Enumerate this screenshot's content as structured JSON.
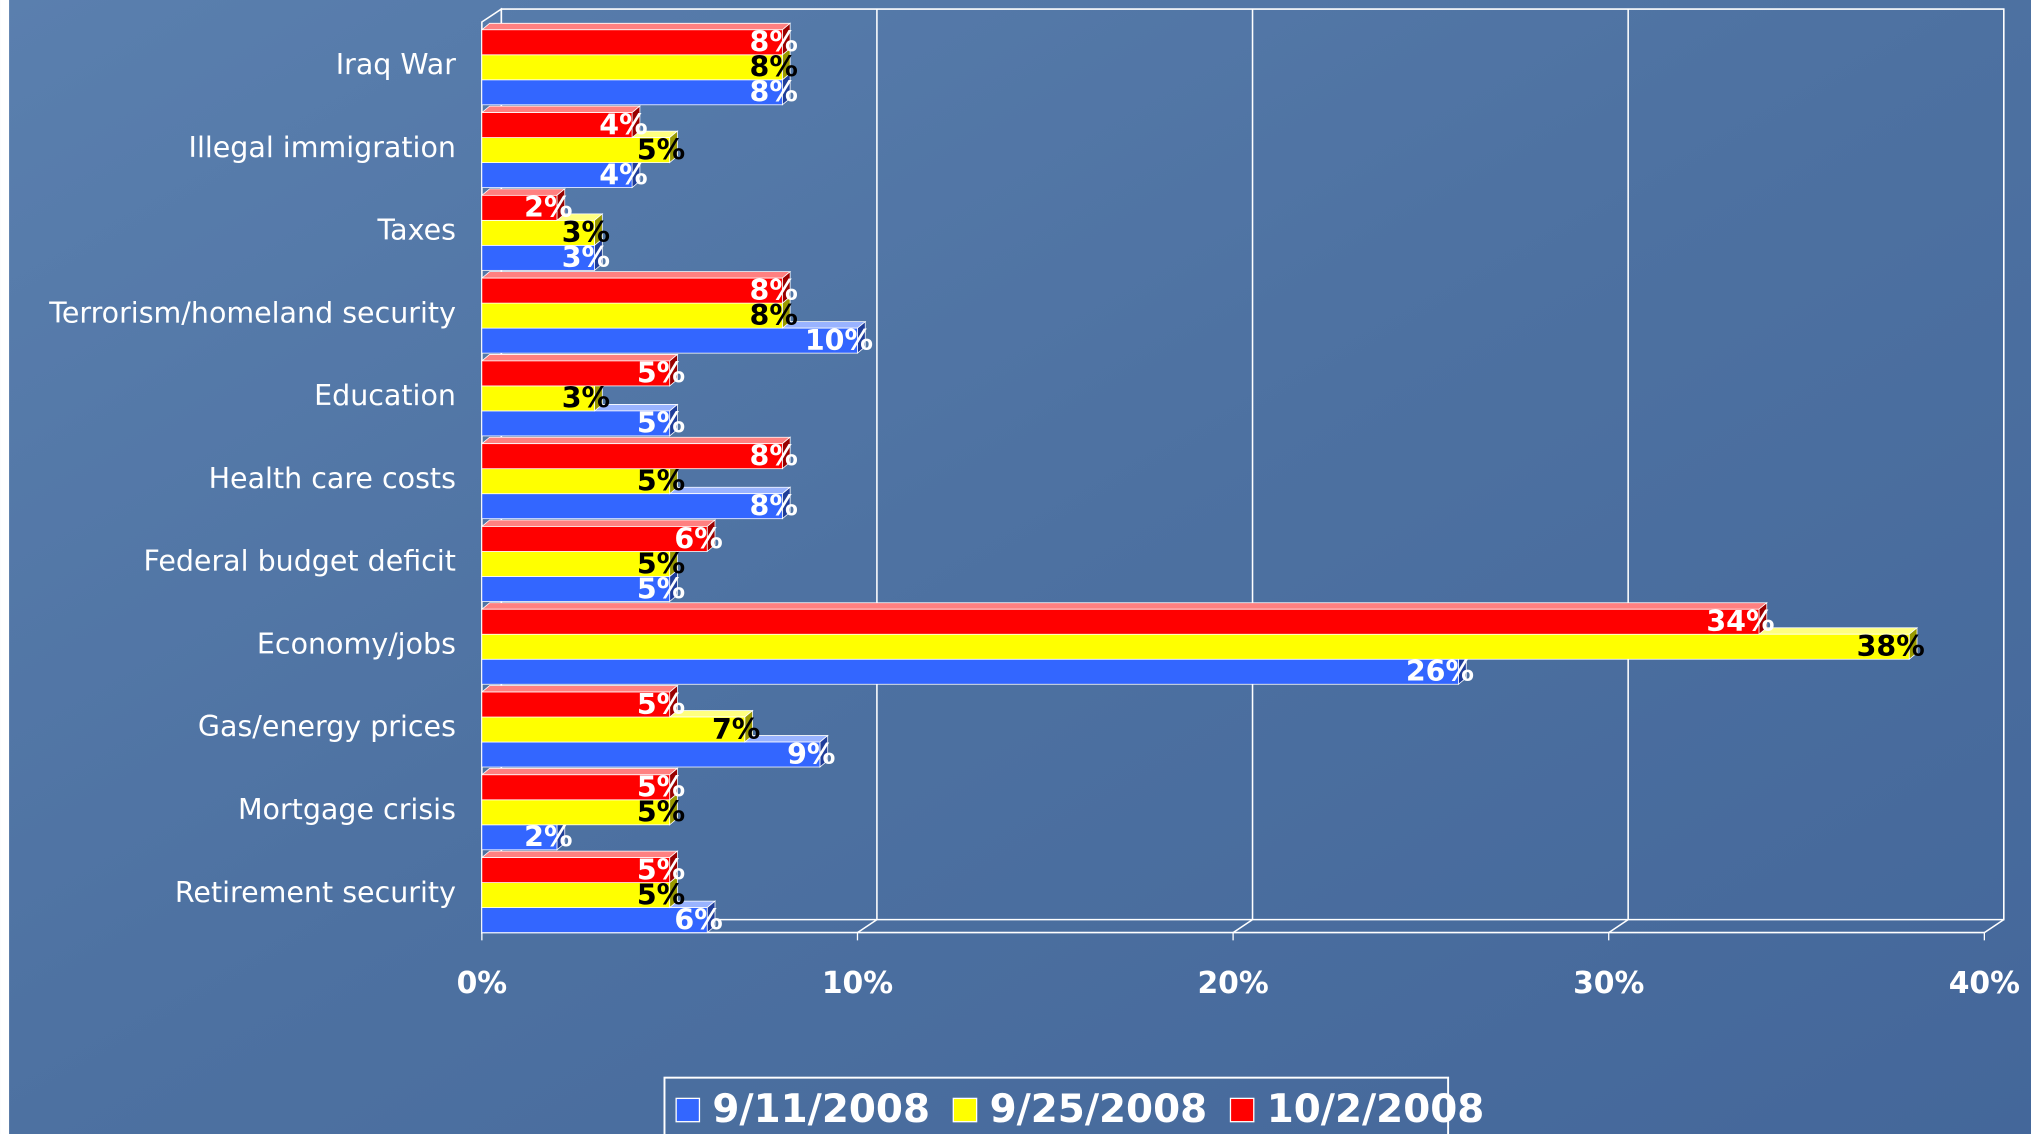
{
  "chart_data": {
    "type": "bar",
    "orientation": "horizontal",
    "categories": [
      "Iraq War",
      "Illegal immigration",
      "Taxes",
      "Terrorism/homeland security",
      "Education",
      "Health care costs",
      "Federal budget deficit",
      "Economy/jobs",
      "Gas/energy prices",
      "Mortgage crisis",
      "Retirement security"
    ],
    "series": [
      {
        "name": "9/11/2008",
        "color": "#3366ff",
        "label_color": "#ffffff",
        "values": [
          8,
          4,
          3,
          10,
          5,
          8,
          5,
          26,
          9,
          2,
          6
        ],
        "value_labels": [
          "8%",
          "4%",
          "3%",
          "10%",
          "5%",
          "8%",
          "5%",
          "26%",
          "9%",
          "2%",
          "6%"
        ]
      },
      {
        "name": "9/25/2008",
        "color": "#ffff00",
        "label_color": "#000000",
        "values": [
          8,
          5,
          3,
          8,
          3,
          5,
          5,
          38,
          7,
          5,
          5
        ],
        "value_labels": [
          "8%",
          "5%",
          "3%",
          "8%",
          "3%",
          "5%",
          "5%",
          "38%",
          "7%",
          "5%",
          "5%"
        ]
      },
      {
        "name": "10/2/2008",
        "color": "#ff0000",
        "label_color": "#ffffff",
        "values": [
          8,
          4,
          2,
          8,
          5,
          8,
          6,
          34,
          5,
          5,
          5
        ],
        "value_labels": [
          "8%",
          "4%",
          "2%",
          "8%",
          "5%",
          "8%",
          "6%",
          "34%",
          "5%",
          "5%",
          "5%"
        ]
      }
    ],
    "xlim": [
      0,
      40
    ],
    "xticks": [
      {
        "value": 0,
        "label": "0%"
      },
      {
        "value": 10,
        "label": "10%"
      },
      {
        "value": 20,
        "label": "20%"
      },
      {
        "value": 30,
        "label": "30%"
      },
      {
        "value": 40,
        "label": "40%"
      }
    ],
    "grid": true,
    "legend": "bottom"
  }
}
